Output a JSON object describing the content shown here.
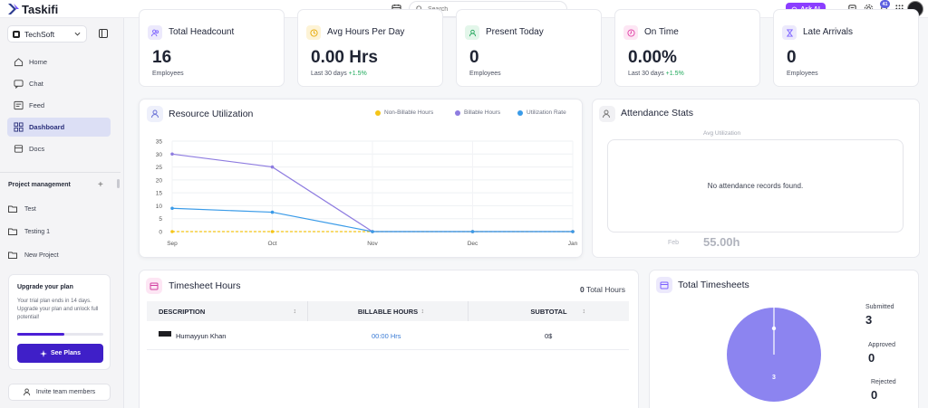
{
  "app": {
    "name": "Taskifi"
  },
  "search": {
    "placeholder": "Search"
  },
  "topbar": {
    "ask_ai": "Ask AI",
    "notification_count": "41"
  },
  "sidebar": {
    "org": "TechSoft",
    "nav": [
      {
        "label": "Home",
        "icon": "home-icon"
      },
      {
        "label": "Chat",
        "icon": "chat-icon"
      },
      {
        "label": "Feed",
        "icon": "feed-icon"
      },
      {
        "label": "Dashboard",
        "icon": "dashboard-icon",
        "active": true
      },
      {
        "label": "Docs",
        "icon": "docs-icon"
      }
    ],
    "section": "Project management",
    "projects": [
      "Test",
      "Testing 1",
      "New Project"
    ],
    "upgrade": {
      "title": "Upgrade your plan",
      "text": "Your trial plan ends in 14 days. Upgrade your plan and unlock full potential!",
      "progress": 0.55,
      "button": "See Plans"
    },
    "invite": "Invite team members"
  },
  "kpis": [
    {
      "title": "Total Headcount",
      "value": "16",
      "sub": "Employees",
      "delta": "",
      "color": "#ece9fc",
      "stroke": "#7b61ff"
    },
    {
      "title": "Avg Hours Per Day",
      "value": "0.00 Hrs",
      "sub": "Last 30 days",
      "delta": "+1.5%",
      "color": "#fdf3d6",
      "stroke": "#e6a700"
    },
    {
      "title": "Present Today",
      "value": "0",
      "sub": "Employees",
      "delta": "",
      "color": "#e3f6ea",
      "stroke": "#22a55b"
    },
    {
      "title": "On Time",
      "value": "0.00%",
      "sub": "Last 30 days",
      "delta": "+1.5%",
      "color": "#fde6f4",
      "stroke": "#e03ea4"
    },
    {
      "title": "Late Arrivals",
      "value": "0",
      "sub": "Employees",
      "delta": "",
      "color": "#ece9fc",
      "stroke": "#7b61ff"
    }
  ],
  "resource": {
    "title": "Resource Utilization"
  },
  "chart_data": {
    "type": "line",
    "title": "Resource Utilization",
    "categories": [
      "Sep",
      "Oct",
      "Nov",
      "Dec",
      "Jan"
    ],
    "ylim": [
      0,
      35
    ],
    "yticks": [
      0,
      5,
      10,
      15,
      20,
      25,
      30,
      35
    ],
    "series": [
      {
        "name": "Non-Billable Hours",
        "color": "#f5c518",
        "dashed": true,
        "values": [
          0,
          0,
          0,
          0,
          0
        ]
      },
      {
        "name": "Billable Hours",
        "color": "#8e7ce0",
        "dashed": false,
        "values": [
          30,
          25,
          0,
          0,
          0
        ]
      },
      {
        "name": "Utilization Rate",
        "color": "#3a9be8",
        "dashed": false,
        "values": [
          9,
          7.5,
          0,
          0,
          0
        ]
      }
    ],
    "legend": "top-right",
    "grid": true
  },
  "attendance": {
    "title": "Attendance Stats",
    "avg_label": "Avg Utilization",
    "empty": "No attendance records found.",
    "footer_month": "Feb",
    "footer_value": "55.00h"
  },
  "timesheet": {
    "title": "Timesheet Hours",
    "total_value": "0",
    "total_label": "Total Hours",
    "columns": [
      "DESCRIPTION",
      "BILLABLE HOURS",
      "SUBTOTAL"
    ],
    "rows": [
      {
        "name": "Humayyun Khan",
        "hours": "00:00 Hrs",
        "subtotal": "0$"
      }
    ]
  },
  "total_timesheets": {
    "title": "Total Timesheets",
    "pie_label": "3",
    "stats": [
      {
        "label": "Submitted",
        "value": "3"
      },
      {
        "label": "Approved",
        "value": "0"
      },
      {
        "label": "Rejected",
        "value": "0"
      }
    ]
  }
}
